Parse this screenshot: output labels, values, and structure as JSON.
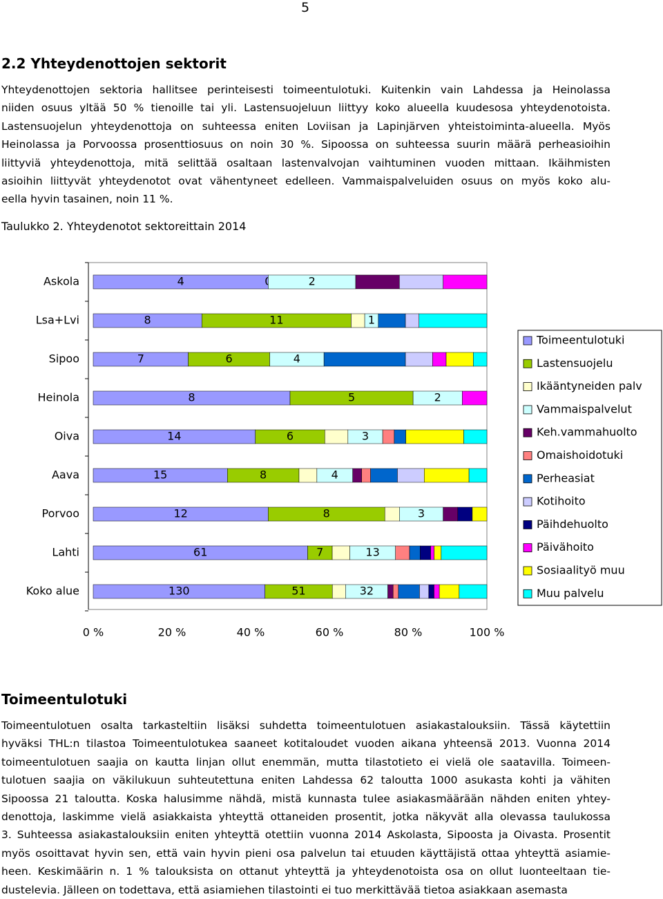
{
  "page_number": "5",
  "section": {
    "heading": "2.2 Yhteydenottojen sektorit",
    "lines": [
      "Yhteydenottojen sektoria hallitsee perinteisesti toimeentulotuki. Kuitenkin vain Lahdessa ja Heinolassa",
      "niiden osuus yltää 50 % tienoille tai yli. Lastensuojeluun liittyy koko alueella kuudesosa yhteydenotoista.",
      "Lastensuojelun yhteydenottoja on suhteessa eniten Loviisan ja Lapinjärven yhteistoiminta-alueella. Myös",
      "Heinolassa ja Porvoossa prosenttiosuus on noin 30 %. Sipoossa on suhteessa suurin määrä perheasioihin",
      "liittyviä yhteydenottoja, mitä selittää osaltaan lastenvalvojan vaihtuminen vuoden mittaan. Ikäihmisten",
      "asioihin liittyvät yhteydenotot ovat vähentyneet edelleen. Vammaispalveluiden osuus on myös koko alu-",
      "eella hyvin tasainen, noin 11 %."
    ],
    "caption": "Taulukko 2. Yhteydenotot sektoreittain 2014"
  },
  "chart_data": {
    "type": "stacked_bar_100",
    "orientation": "horizontal",
    "categories": [
      "Askola",
      "Lsa+Lvi",
      "Sipoo",
      "Heinola",
      "Oiva",
      "Aava",
      "Porvoo",
      "Lahti",
      "Koko alue"
    ],
    "series": [
      {
        "name": "Toimeentulotuki",
        "color": "#9999ff",
        "values": [
          4,
          8,
          7,
          8,
          14,
          15,
          12,
          61,
          130
        ],
        "value_labels": [
          "4",
          "8",
          "7",
          "8",
          "14",
          "15",
          "12",
          "61",
          "130"
        ]
      },
      {
        "name": "Lastensuojelu",
        "color": "#99cc00",
        "values": [
          0,
          11,
          6,
          5,
          6,
          8,
          8,
          7,
          51
        ],
        "value_labels": [
          "0",
          "11",
          "6",
          "5",
          "6",
          "8",
          "8",
          "7",
          "51"
        ]
      },
      {
        "name": "Ikääntyneiden palv",
        "color": "#ffffcc",
        "values": [
          0,
          1,
          0,
          0,
          2,
          2,
          1,
          5,
          10
        ]
      },
      {
        "name": "Vammaispalvelut",
        "color": "#ccffff",
        "values": [
          2,
          1,
          4,
          2,
          3,
          4,
          3,
          13,
          32
        ],
        "value_labels": [
          "2",
          "1",
          "4",
          "2",
          "3",
          "4",
          "3",
          "13",
          "32"
        ]
      },
      {
        "name": "Keh.vammahuolto",
        "color": "#660066",
        "values": [
          1,
          0,
          0,
          0,
          0,
          1,
          1,
          0,
          4
        ]
      },
      {
        "name": "Omaishoidotuki",
        "color": "#ff8080",
        "values": [
          0,
          0,
          0,
          0,
          1,
          1,
          0,
          4,
          4
        ]
      },
      {
        "name": "Perheasiat",
        "color": "#0066cc",
        "values": [
          0,
          2,
          6,
          0,
          1,
          3,
          0,
          3,
          16
        ]
      },
      {
        "name": "Kotihoito",
        "color": "#ccccff",
        "values": [
          1,
          1,
          2,
          0,
          0,
          3,
          0,
          0,
          7
        ]
      },
      {
        "name": "Päihdehuolto",
        "color": "#000080",
        "values": [
          0,
          0,
          0,
          0,
          0,
          0,
          1,
          3,
          4
        ]
      },
      {
        "name": "Päivähoito",
        "color": "#ff00ff",
        "values": [
          1,
          0,
          1,
          1,
          0,
          0,
          0,
          1,
          4
        ]
      },
      {
        "name": "Sosiaalityö muu",
        "color": "#ffff00",
        "values": [
          0,
          0,
          2,
          0,
          5,
          5,
          1,
          2,
          15
        ]
      },
      {
        "name": "Muu palvelu",
        "color": "#00ffff",
        "values": [
          0,
          5,
          1,
          0,
          2,
          2,
          0,
          13,
          21
        ]
      }
    ],
    "xlim": [
      0,
      100
    ],
    "xticks": [
      {
        "value": 0,
        "label": "0 %"
      },
      {
        "value": 20,
        "label": "20 %"
      },
      {
        "value": 40,
        "label": "40 %"
      },
      {
        "value": 60,
        "label": "60 %"
      },
      {
        "value": 80,
        "label": "80 %"
      },
      {
        "value": 100,
        "label": "100 %"
      }
    ],
    "legend": "right"
  },
  "section2": {
    "heading": "Toimeentulotuki",
    "lines": [
      "Toimeentulotuen osalta tarkasteltiin lisäksi suhdetta toimeentulotuen asiakastalouksiin. Tässä käytettiin",
      "hyväksi THL:n tilastoa Toimeentulotukea saaneet kotitaloudet vuoden aikana yhteensä 2013. Vuonna 2014",
      "toimeentulotuen saajia on kautta linjan ollut enemmän, mutta tilastotieto ei vielä ole saatavilla. Toimeen-",
      "tulotuen saajia on väkilukuun suhteutettuna eniten Lahdessa 62 taloutta 1000 asukasta kohti ja vähiten",
      "Sipoossa 21 taloutta. Koska halusimme nähdä, mistä kunnasta tulee asiakasmäärään nähden eniten yhtey-",
      "denottoja, laskimme vielä asiakkaista yhteyttä ottaneiden prosentit, jotka näkyvät alla olevassa taulukossa",
      "3. Suhteessa asiakastalouksiin eniten yhteyttä otettiin vuonna 2014 Askolasta, Sipoosta ja Oivasta. Prosentit",
      "myös osoittavat hyvin sen, että vain hyvin pieni osa palvelun tai etuuden käyttäjistä ottaa yhteyttä asiamie-",
      "heen. Keskimäärin n. 1 % talouksista on ottanut yhteyttä ja yhteydenotoista osa on ollut luonteeltaan tie-",
      "dustelevia. Jälleen on todettava, että asiamiehen tilastointi ei tuo merkittävää tietoa asiakkaan asemasta"
    ]
  }
}
